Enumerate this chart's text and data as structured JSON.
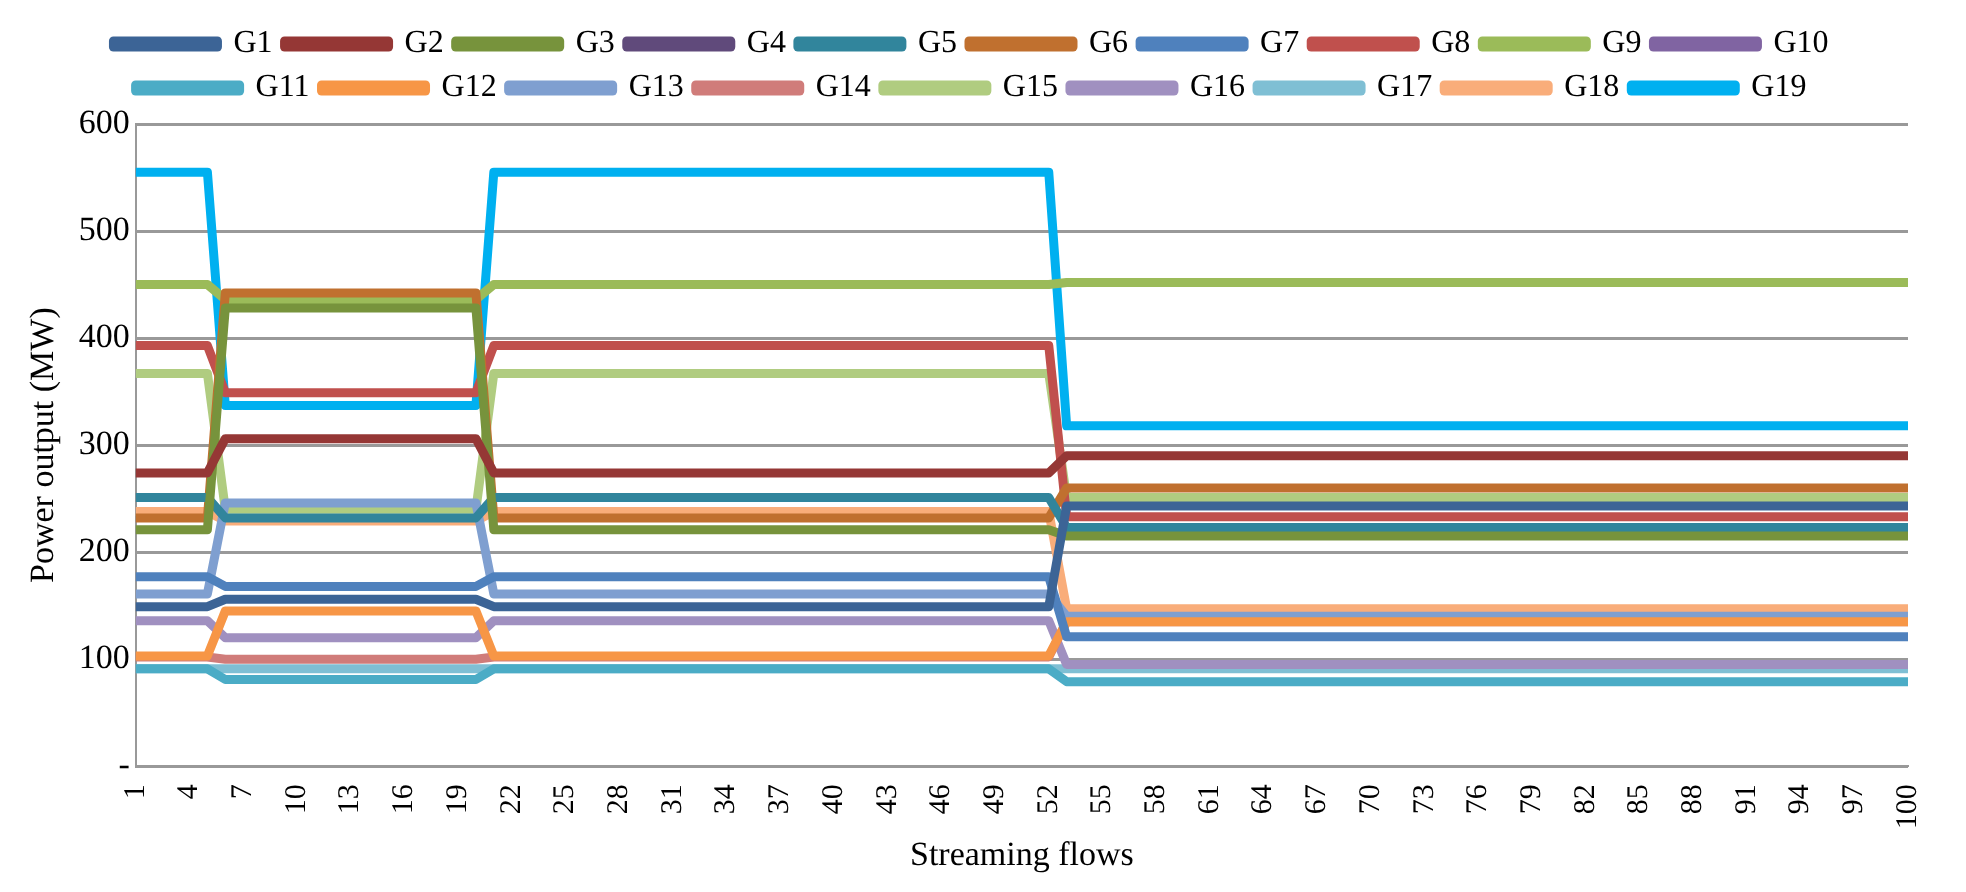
{
  "chart_data": {
    "type": "line",
    "xlabel": "Streaming flows",
    "ylabel": "Power output (MW)",
    "x": [
      1,
      5,
      6,
      20,
      21,
      52,
      53,
      100
    ],
    "xlim": [
      1,
      100
    ],
    "xticks": [
      1,
      4,
      7,
      10,
      13,
      16,
      19,
      22,
      25,
      28,
      31,
      34,
      37,
      40,
      43,
      46,
      49,
      52,
      55,
      58,
      61,
      64,
      67,
      70,
      73,
      76,
      79,
      82,
      85,
      88,
      91,
      94,
      97,
      100
    ],
    "ylim": [
      0,
      600
    ],
    "yticks": [
      {
        "value": 0,
        "label": "-"
      },
      100,
      200,
      300,
      400,
      500,
      600
    ],
    "grid": "y",
    "legend": "top",
    "marker": "none",
    "line_style": "solid",
    "series": [
      {
        "name": "G1",
        "color": "#3c6496",
        "values": [
          149,
          149,
          156,
          156,
          149,
          149,
          243,
          243
        ]
      },
      {
        "name": "G2",
        "color": "#953735",
        "values": [
          274,
          274,
          306,
          306,
          274,
          274,
          290,
          290
        ]
      },
      {
        "name": "G3",
        "color": "#77933c",
        "values": [
          221,
          221,
          428,
          428,
          221,
          221,
          215,
          215
        ]
      },
      {
        "name": "G4",
        "color": "#604a7b",
        "values": [
          null,
          null,
          null,
          null,
          null,
          null,
          null,
          null
        ]
      },
      {
        "name": "G5",
        "color": "#31859c",
        "values": [
          251,
          251,
          232,
          232,
          251,
          251,
          223,
          223
        ]
      },
      {
        "name": "G6",
        "color": "#c0702f",
        "values": [
          232,
          232,
          442,
          442,
          232,
          232,
          260,
          260
        ]
      },
      {
        "name": "G7",
        "color": "#4f81bd",
        "values": [
          177,
          177,
          168,
          168,
          177,
          177,
          121,
          121
        ]
      },
      {
        "name": "G8",
        "color": "#c0504d",
        "values": [
          393,
          393,
          349,
          349,
          393,
          393,
          233,
          233
        ]
      },
      {
        "name": "G9",
        "color": "#9bbb59",
        "values": [
          450,
          450,
          436,
          436,
          450,
          450,
          452,
          452
        ]
      },
      {
        "name": "G10",
        "color": "#8064a2",
        "values": [
          null,
          null,
          null,
          null,
          null,
          null,
          null,
          null
        ]
      },
      {
        "name": "G11",
        "color": "#4bacc6",
        "values": [
          91,
          91,
          81,
          81,
          91,
          91,
          79,
          79
        ]
      },
      {
        "name": "G12",
        "color": "#f79646",
        "values": [
          103,
          103,
          145,
          145,
          103,
          103,
          135,
          135
        ]
      },
      {
        "name": "G13",
        "color": "#7f9fd0",
        "values": [
          161,
          161,
          246,
          246,
          161,
          161,
          140,
          140
        ]
      },
      {
        "name": "G14",
        "color": "#d07c7a",
        "values": [
          102,
          102,
          100,
          100,
          102,
          102,
          135,
          135
        ]
      },
      {
        "name": "G15",
        "color": "#b0cc80",
        "values": [
          367,
          367,
          240,
          240,
          367,
          367,
          251,
          251
        ]
      },
      {
        "name": "G16",
        "color": "#a090c0",
        "values": [
          136,
          136,
          120,
          120,
          136,
          136,
          95,
          95
        ]
      },
      {
        "name": "G17",
        "color": "#7fbfd4",
        "values": [
          91,
          91,
          91,
          91,
          91,
          91,
          91,
          91
        ]
      },
      {
        "name": "G18",
        "color": "#f9ad7a",
        "values": [
          238,
          238,
          229,
          229,
          238,
          238,
          147,
          147
        ]
      },
      {
        "name": "G19",
        "color": "#00b0f0",
        "values": [
          555,
          555,
          337,
          337,
          555,
          555,
          318,
          318
        ]
      }
    ]
  }
}
